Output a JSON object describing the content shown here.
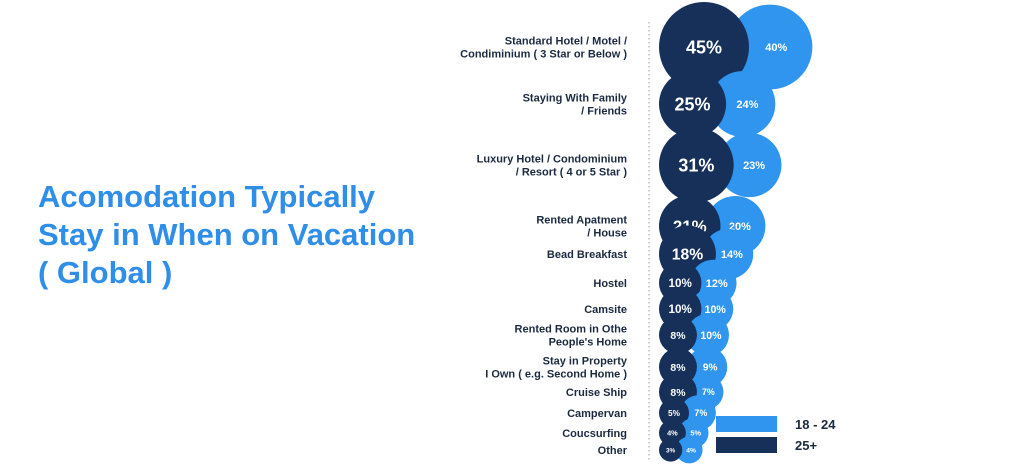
{
  "title_lines": [
    "Acomodation Typically",
    "Stay in When on Vacation",
    "( Global )"
  ],
  "colors": {
    "young": "#2f95ee",
    "old": "#16305a"
  },
  "chart_data": {
    "type": "bubble",
    "title": "Acomodation Typically Stay in When on Vacation ( Global )",
    "categories": [
      [
        "Standard Hotel / Motel /",
        "Condiminium ( 3 Star or Below )"
      ],
      [
        "Staying With Family",
        "/ Friends"
      ],
      [
        "Luxury Hotel / Condominium",
        "/ Resort ( 4 or 5 Star )"
      ],
      [
        "Rented Apatment",
        "/ House"
      ],
      [
        "Bead Breakfast"
      ],
      [
        "Hostel"
      ],
      [
        "Camsite"
      ],
      [
        "Rented Room in Othe",
        "People's Home"
      ],
      [
        "Stay in Property",
        "I Own ( e.g. Second Home )"
      ],
      [
        "Cruise Ship"
      ],
      [
        "Campervan"
      ],
      [
        "Coucsurfing"
      ],
      [
        "Other"
      ]
    ],
    "series": [
      {
        "name": "25+",
        "color": "#16305a",
        "values": [
          45,
          25,
          31,
          21,
          18,
          10,
          10,
          8,
          8,
          8,
          5,
          4,
          3
        ]
      },
      {
        "name": "18 - 24",
        "color": "#2f95ee",
        "values": [
          40,
          24,
          23,
          20,
          14,
          12,
          10,
          10,
          9,
          7,
          7,
          5,
          4
        ]
      }
    ],
    "labels_25plus": [
      "45%",
      "25%",
      "31%",
      "21%",
      "18%",
      "10%",
      "10%",
      "8%",
      "8%",
      "8%",
      "5%",
      "4%",
      "3%"
    ],
    "labels_18_24": [
      "40%",
      "24%",
      "23%",
      "20%",
      "14%",
      "12%",
      "10%",
      "10%",
      "9%",
      "7%",
      "7%",
      "5%",
      "4%"
    ],
    "legend": {
      "position": "bottom-right",
      "entries": [
        "18 - 24",
        "25+"
      ]
    }
  }
}
